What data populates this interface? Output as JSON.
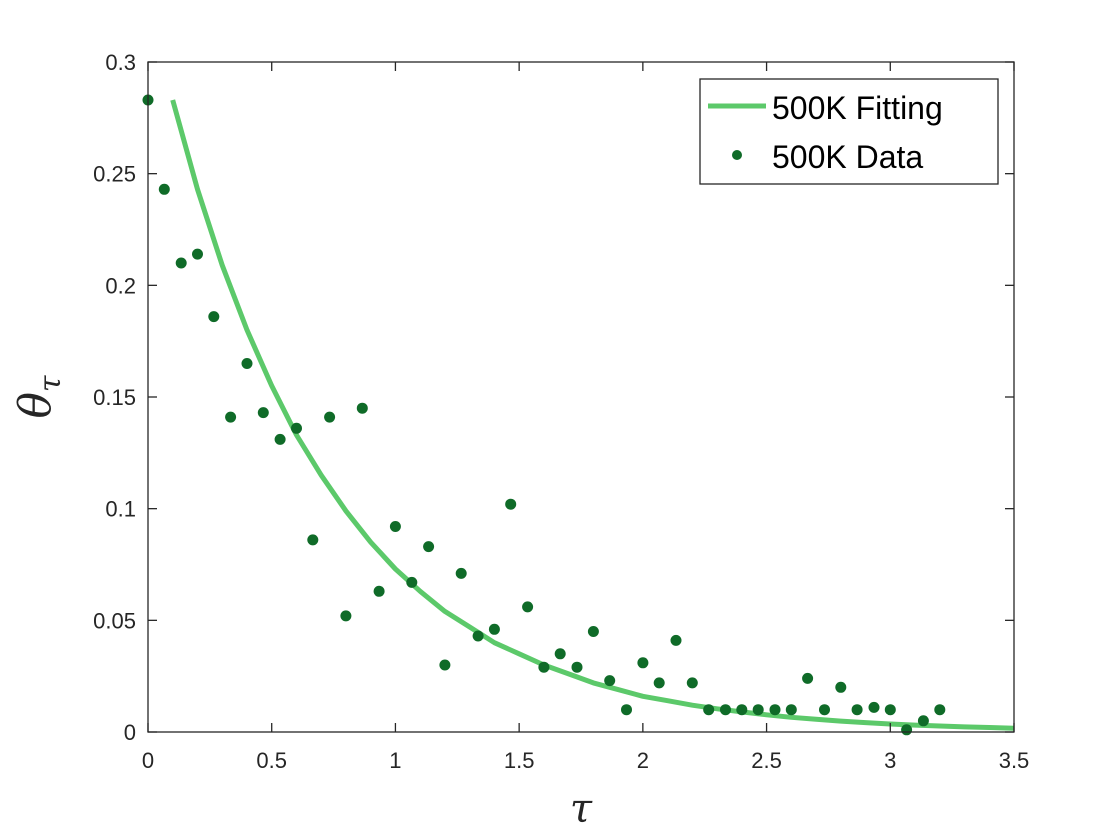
{
  "chart_data": {
    "type": "scatter",
    "xlabel": "τ",
    "ylabel": "θ",
    "ylabel_subscript": "τ",
    "xlim": [
      0,
      3.5
    ],
    "ylim": [
      0,
      0.3
    ],
    "x_ticks": [
      "0",
      "0.5",
      "1",
      "1.5",
      "2",
      "2.5",
      "3",
      "3.5"
    ],
    "y_ticks": [
      "0",
      "0.05",
      "0.1",
      "0.15",
      "0.2",
      "0.25",
      "0.3"
    ],
    "grid": false,
    "legend_position": "top-right",
    "series": [
      {
        "name": "500K Fitting",
        "kind": "line",
        "color": "#5cc96a",
        "x": [
          0.1,
          0.2,
          0.3,
          0.4,
          0.5,
          0.6,
          0.7,
          0.8,
          0.9,
          1.0,
          1.1,
          1.2,
          1.3,
          1.4,
          1.5,
          1.6,
          1.7,
          1.8,
          1.9,
          2.0,
          2.1,
          2.2,
          2.3,
          2.4,
          2.5,
          2.6,
          2.7,
          2.8,
          2.9,
          3.0,
          3.1,
          3.2,
          3.3,
          3.4,
          3.5
        ],
        "y": [
          0.283,
          0.243,
          0.209,
          0.18,
          0.155,
          0.133,
          0.115,
          0.099,
          0.085,
          0.073,
          0.063,
          0.054,
          0.047,
          0.04,
          0.035,
          0.03,
          0.026,
          0.022,
          0.019,
          0.016,
          0.014,
          0.012,
          0.0104,
          0.009,
          0.0077,
          0.0066,
          0.0057,
          0.0049,
          0.0042,
          0.0036,
          0.0031,
          0.0027,
          0.0023,
          0.002,
          0.0017
        ]
      },
      {
        "name": "500K Data",
        "kind": "scatter",
        "color": "#0f6b28",
        "x": [
          0.0,
          0.066,
          0.134,
          0.2,
          0.266,
          0.334,
          0.4,
          0.466,
          0.534,
          0.6,
          0.666,
          0.734,
          0.8,
          0.866,
          0.934,
          1.0,
          1.066,
          1.134,
          1.2,
          1.266,
          1.334,
          1.4,
          1.466,
          1.534,
          1.6,
          1.666,
          1.734,
          1.8,
          1.866,
          1.934,
          2.0,
          2.066,
          2.134,
          2.2,
          2.266,
          2.334,
          2.4,
          2.466,
          2.534,
          2.6,
          2.666,
          2.734,
          2.8,
          2.866,
          2.934,
          3.0,
          3.066,
          3.134,
          3.2
        ],
        "y": [
          0.283,
          0.243,
          0.21,
          0.214,
          0.186,
          0.141,
          0.165,
          0.143,
          0.131,
          0.136,
          0.086,
          0.141,
          0.052,
          0.145,
          0.063,
          0.092,
          0.067,
          0.083,
          0.03,
          0.071,
          0.043,
          0.046,
          0.102,
          0.056,
          0.029,
          0.035,
          0.029,
          0.045,
          0.023,
          0.01,
          0.031,
          0.022,
          0.041,
          0.022,
          0.01,
          0.01,
          0.01,
          0.01,
          0.01,
          0.01,
          0.024,
          0.01,
          0.02,
          0.01,
          0.011,
          0.01,
          0.001,
          0.005,
          0.01
        ]
      }
    ]
  }
}
